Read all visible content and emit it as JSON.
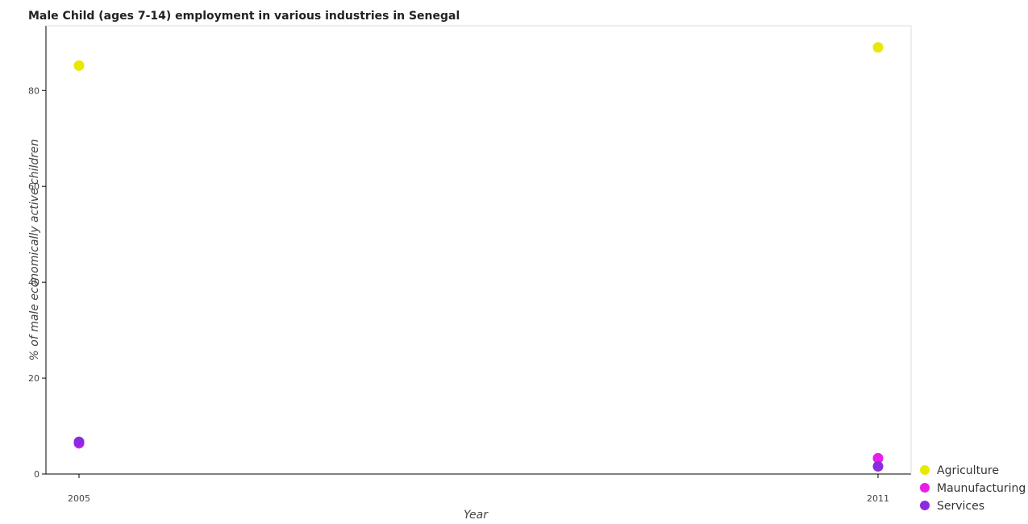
{
  "chart_data": {
    "type": "scatter",
    "title": "Male Child (ages 7-14) employment in various industries in Senegal",
    "xlabel": "Year",
    "ylabel": "% of male economically active children",
    "categories": [
      "2005",
      "2011"
    ],
    "ylim": [
      0,
      93.5
    ],
    "yticks": [
      0,
      20,
      40,
      60,
      80
    ],
    "grid": false,
    "legend_position": "bottom-right",
    "series": [
      {
        "name": "Agriculture",
        "color": "#e8e800",
        "values": [
          85.2,
          89.0
        ]
      },
      {
        "name": "Maunufacturing",
        "color": "#e81ee8",
        "values": [
          6.4,
          3.3
        ]
      },
      {
        "name": "Services",
        "color": "#8a2be2",
        "values": [
          6.7,
          1.6
        ]
      }
    ]
  }
}
